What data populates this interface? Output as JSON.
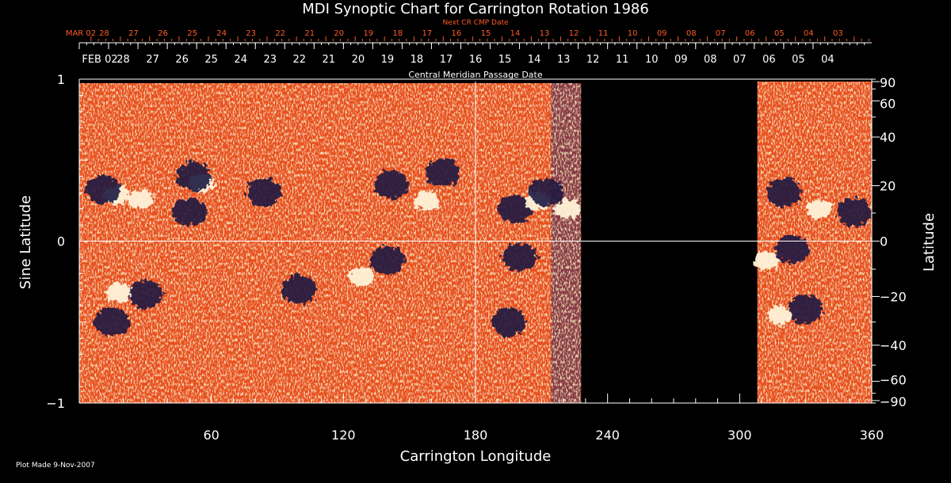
{
  "chart_data": {
    "type": "heatmap",
    "title": "MDI Synoptic Chart for Carrington Rotation 1986",
    "xlabel": "Carrington Longitude",
    "ylabel_left": "Sine Latitude",
    "ylabel_right": "Latitude",
    "xlim": [
      0,
      360
    ],
    "ylim": [
      -1,
      1
    ],
    "x_ticks": [
      60,
      120,
      180,
      240,
      300,
      360
    ],
    "x_tick_labels": [
      "60",
      "120",
      "180",
      "240",
      "300",
      "360"
    ],
    "y_left_ticks": [
      -1,
      0,
      1
    ],
    "y_left_tick_labels": [
      "−1",
      "0",
      "1"
    ],
    "y_right_ticks": [
      90,
      60,
      40,
      20,
      0,
      -20,
      -40,
      -60,
      -90
    ],
    "y_right_tick_labels": [
      "90",
      "60",
      "40",
      "20",
      "0",
      "−20",
      "−40",
      "−60",
      "−90"
    ],
    "gridlines": {
      "x": [
        180
      ],
      "y": [
        0
      ]
    },
    "data_gap_longitude": [
      228,
      308
    ],
    "colors": {
      "background": "#000000",
      "field_mid": "#e8501e",
      "field_positive": "#fff2d8",
      "field_negative": "#1c1840",
      "next_axis": "#ff5a28"
    },
    "cmp_axis": {
      "title": "Central Meridian Passage Date",
      "labels": [
        "FEB 02",
        "28",
        "27",
        "26",
        "25",
        "24",
        "23",
        "22",
        "21",
        "20",
        "19",
        "18",
        "17",
        "16",
        "15",
        "14",
        "13",
        "12",
        "11",
        "10",
        "09",
        "08",
        "07",
        "06",
        "05",
        "04"
      ]
    },
    "next_cmp_axis": {
      "title": "Next CR CMP Date",
      "labels": [
        "MAR 02",
        "28",
        "27",
        "26",
        "25",
        "24",
        "23",
        "22",
        "21",
        "20",
        "19",
        "18",
        "17",
        "16",
        "15",
        "14",
        "13",
        "12",
        "11",
        "10",
        "09",
        "08",
        "07",
        "06",
        "05",
        "04",
        "03"
      ]
    },
    "regions": [
      {
        "type": "positive",
        "lon": 17,
        "sinlat": 0.28
      },
      {
        "type": "negative",
        "lon": 11,
        "sinlat": 0.32
      },
      {
        "type": "positive",
        "lon": 28,
        "sinlat": 0.26
      },
      {
        "type": "negative",
        "lon": 50,
        "sinlat": 0.18
      },
      {
        "type": "positive",
        "lon": 56,
        "sinlat": 0.36
      },
      {
        "type": "negative",
        "lon": 52,
        "sinlat": 0.4
      },
      {
        "type": "negative",
        "lon": 30,
        "sinlat": -0.33
      },
      {
        "type": "positive",
        "lon": 18,
        "sinlat": -0.32
      },
      {
        "type": "negative",
        "lon": 15,
        "sinlat": -0.5
      },
      {
        "type": "negative",
        "lon": 84,
        "sinlat": 0.3
      },
      {
        "type": "negative",
        "lon": 100,
        "sinlat": -0.3
      },
      {
        "type": "positive",
        "lon": 128,
        "sinlat": -0.22
      },
      {
        "type": "negative",
        "lon": 140,
        "sinlat": -0.12
      },
      {
        "type": "negative",
        "lon": 142,
        "sinlat": 0.35
      },
      {
        "type": "positive",
        "lon": 158,
        "sinlat": 0.25
      },
      {
        "type": "negative",
        "lon": 165,
        "sinlat": 0.42
      },
      {
        "type": "negative",
        "lon": 198,
        "sinlat": 0.2
      },
      {
        "type": "positive",
        "lon": 208,
        "sinlat": 0.25
      },
      {
        "type": "positive",
        "lon": 222,
        "sinlat": 0.2
      },
      {
        "type": "negative",
        "lon": 212,
        "sinlat": 0.3
      },
      {
        "type": "negative",
        "lon": 200,
        "sinlat": -0.1
      },
      {
        "type": "negative",
        "lon": 195,
        "sinlat": -0.5
      },
      {
        "type": "negative",
        "lon": 320,
        "sinlat": 0.3
      },
      {
        "type": "positive",
        "lon": 336,
        "sinlat": 0.2
      },
      {
        "type": "negative",
        "lon": 324,
        "sinlat": -0.05
      },
      {
        "type": "positive",
        "lon": 312,
        "sinlat": -0.12
      },
      {
        "type": "negative",
        "lon": 330,
        "sinlat": -0.42
      },
      {
        "type": "positive",
        "lon": 318,
        "sinlat": -0.46
      },
      {
        "type": "negative",
        "lon": 352,
        "sinlat": 0.18
      }
    ]
  },
  "footer": {
    "plot_made": "Plot Made  9-Nov-2007"
  }
}
